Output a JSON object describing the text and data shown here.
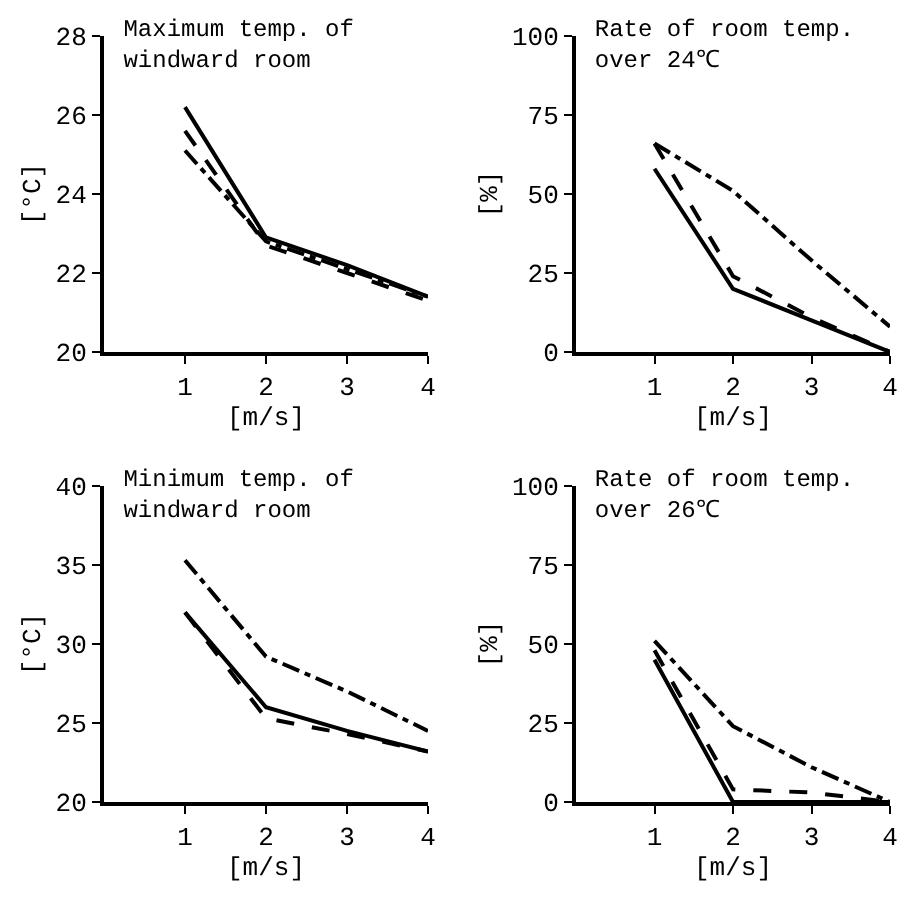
{
  "chart_data": [
    {
      "type": "line",
      "title": "Maximum temp. of windward room",
      "xlabel": "[m/s]",
      "ylabel": "[°C]",
      "x": [
        1,
        2,
        3,
        4
      ],
      "xlim": [
        0,
        4
      ],
      "xticks": [
        1,
        2,
        3,
        4
      ],
      "ylim": [
        20,
        28
      ],
      "yticks": [
        20,
        22,
        24,
        26,
        28
      ],
      "grid": false,
      "marker": "none",
      "series": [
        {
          "color": "#000000",
          "line_style": "solid",
          "values": [
            26.2,
            22.9,
            22.2,
            21.4
          ]
        },
        {
          "color": "#000000",
          "line_style": "dashed",
          "values": [
            25.6,
            22.7,
            22.0,
            21.3
          ]
        },
        {
          "color": "#000000",
          "line_style": "dashdot",
          "values": [
            25.1,
            22.8,
            22.1,
            21.4
          ]
        }
      ]
    },
    {
      "type": "line",
      "title": "Rate of room temp. over 24℃",
      "xlabel": "[m/s]",
      "ylabel": "[%]",
      "x": [
        1,
        2,
        3,
        4
      ],
      "xlim": [
        0,
        4
      ],
      "xticks": [
        1,
        2,
        3,
        4
      ],
      "ylim": [
        0,
        100
      ],
      "yticks": [
        0,
        25,
        50,
        75,
        100
      ],
      "grid": false,
      "marker": "none",
      "series": [
        {
          "color": "#000000",
          "line_style": "solid",
          "values": [
            58,
            20,
            10,
            0
          ]
        },
        {
          "color": "#000000",
          "line_style": "dashed",
          "values": [
            66,
            24,
            11,
            0
          ]
        },
        {
          "color": "#000000",
          "line_style": "dashdot",
          "values": [
            66,
            51,
            29,
            8
          ]
        }
      ]
    },
    {
      "type": "line",
      "title": "Minimum temp. of windward room",
      "xlabel": "[m/s]",
      "ylabel": "[°C]",
      "x": [
        1,
        2,
        3,
        4
      ],
      "xlim": [
        0,
        4
      ],
      "xticks": [
        1,
        2,
        3,
        4
      ],
      "ylim": [
        20,
        40
      ],
      "yticks": [
        20,
        25,
        30,
        35,
        40
      ],
      "grid": false,
      "marker": "none",
      "series": [
        {
          "color": "#000000",
          "line_style": "solid",
          "values": [
            32,
            26,
            24.5,
            23.2
          ]
        },
        {
          "color": "#000000",
          "line_style": "dashed",
          "values": [
            32,
            25.3,
            24.3,
            23.2
          ]
        },
        {
          "color": "#000000",
          "line_style": "dashdot",
          "values": [
            35.3,
            29.2,
            27,
            24.5
          ]
        }
      ]
    },
    {
      "type": "line",
      "title": "Rate of room temp. over 26℃",
      "xlabel": "[m/s]",
      "ylabel": "[%]",
      "x": [
        1,
        2,
        3,
        4
      ],
      "xlim": [
        0,
        4
      ],
      "xticks": [
        1,
        2,
        3,
        4
      ],
      "ylim": [
        0,
        100
      ],
      "yticks": [
        0,
        25,
        50,
        75,
        100
      ],
      "grid": false,
      "marker": "none",
      "series": [
        {
          "color": "#000000",
          "line_style": "solid",
          "values": [
            45,
            0,
            0,
            0
          ]
        },
        {
          "color": "#000000",
          "line_style": "dashed",
          "values": [
            48,
            4,
            3,
            0
          ]
        },
        {
          "color": "#000000",
          "line_style": "dashdot",
          "values": [
            51,
            24,
            11,
            0
          ]
        }
      ]
    }
  ]
}
